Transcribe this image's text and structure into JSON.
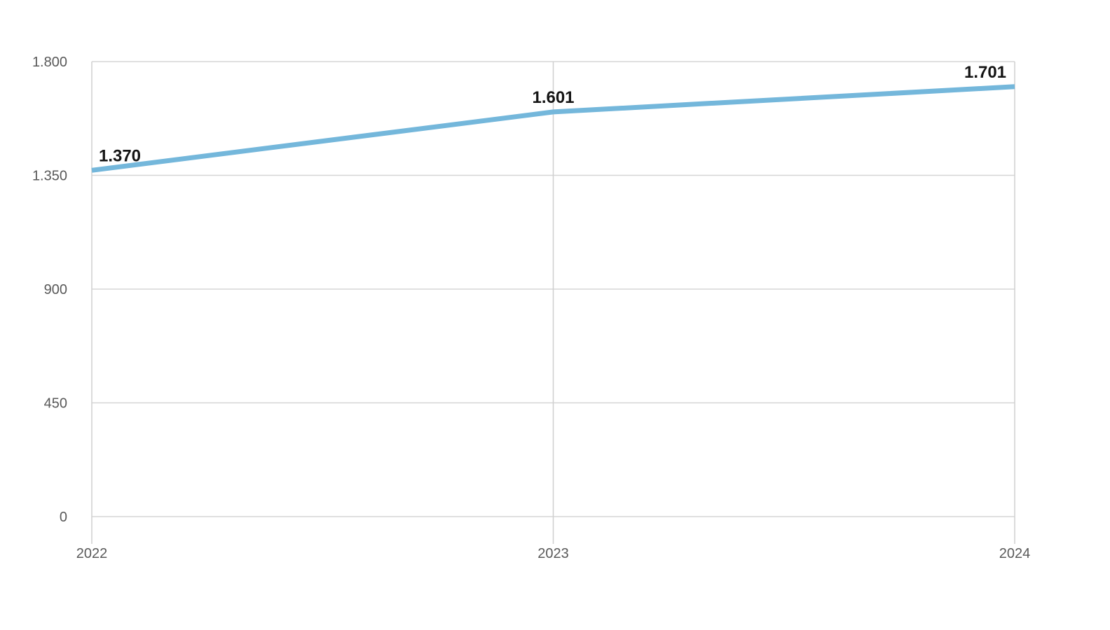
{
  "chart_data": {
    "type": "line",
    "title": "",
    "xlabel": "",
    "ylabel": "",
    "categories": [
      "2022",
      "2023",
      "2024"
    ],
    "series": [
      {
        "name": "series-1",
        "values": [
          1370,
          1601,
          1701
        ],
        "data_labels": [
          "1.370",
          "1.601",
          "1.701"
        ]
      }
    ],
    "y_ticks": [
      {
        "label": "1.800",
        "value": 1800
      },
      {
        "label": "1.350",
        "value": 1350
      },
      {
        "label": "900",
        "value": 900
      },
      {
        "label": "450",
        "value": 450
      },
      {
        "label": "0",
        "value": 0
      }
    ],
    "ylim": [
      0,
      1800
    ],
    "grid": true,
    "legend": false,
    "colors": {
      "background": "#ffffff",
      "line": "#74b7db",
      "grid_horizontal": "#d6d6d6",
      "grid_vertical": "#cfcfcf",
      "tick_label": "#595959",
      "data_label": "#141414"
    }
  }
}
